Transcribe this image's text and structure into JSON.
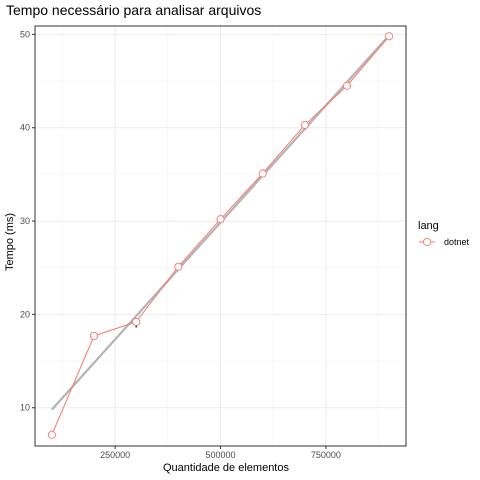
{
  "chart_data": {
    "type": "line",
    "title": "Tempo necessário para analisar arquivos",
    "xlabel": "Quantidade de elementos",
    "ylabel": "Tempo (ms)",
    "xlim": [
      60000,
      940000
    ],
    "ylim": [
      5.9,
      50.9
    ],
    "x_ticks": [
      250000,
      500000,
      750000
    ],
    "x_tick_labels": [
      "250000",
      "500000",
      "750000"
    ],
    "y_ticks": [
      10,
      20,
      30,
      40,
      50
    ],
    "y_tick_labels": [
      "10",
      "20",
      "30",
      "40",
      "50"
    ],
    "grid": true,
    "legend": {
      "title": "lang",
      "position": "right"
    },
    "series": [
      {
        "name": "dotnet",
        "color": "#F8766D",
        "marker": "open-circle",
        "x": [
          100000,
          200000,
          300000,
          400000,
          500000,
          600000,
          700000,
          800000,
          900000
        ],
        "y": [
          7.1,
          17.7,
          19.2,
          25.1,
          30.2,
          35.1,
          40.3,
          44.5,
          49.8
        ]
      }
    ],
    "trend_line": {
      "color": "#b3b3b3",
      "x": [
        100000,
        900000
      ],
      "y": [
        9.8,
        49.9
      ]
    },
    "error_bars": {
      "color": "#000000",
      "items": [
        {
          "x": 300000,
          "low": 18.6,
          "high": 19.4
        },
        {
          "x": 600000,
          "low": 34.7,
          "high": 35.5
        },
        {
          "x": 800000,
          "low": 44.2,
          "high": 44.8
        }
      ]
    }
  }
}
